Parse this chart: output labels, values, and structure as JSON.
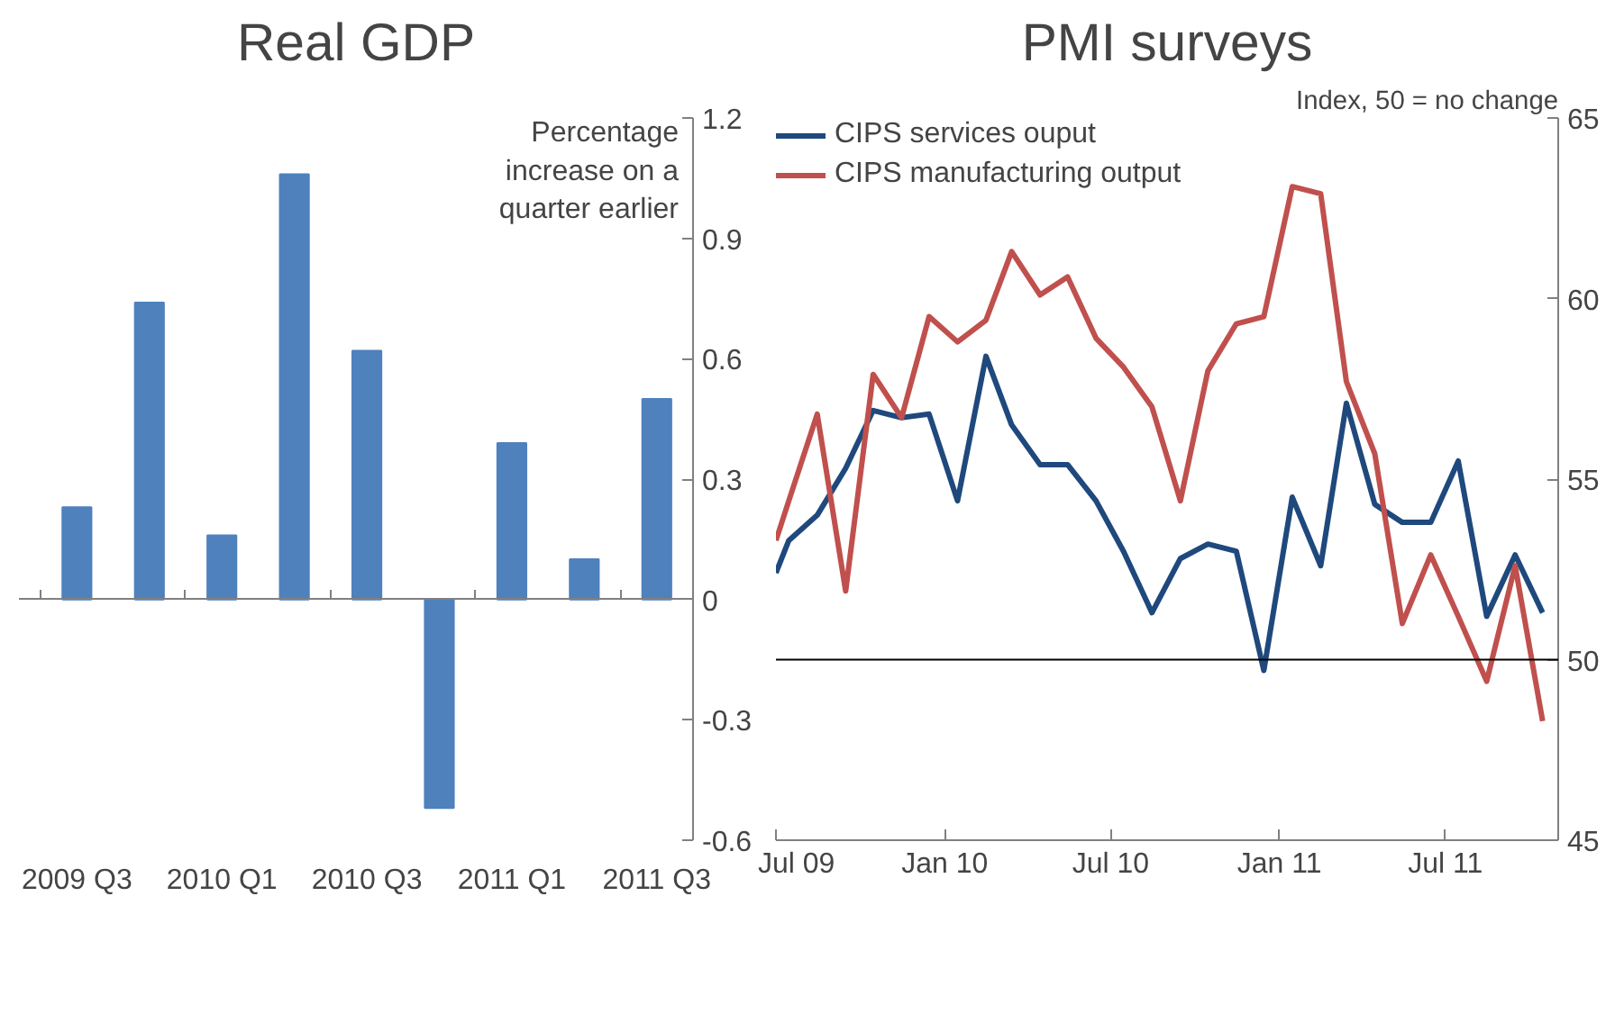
{
  "chart_data": [
    {
      "type": "bar",
      "title": "Real GDP",
      "ylabel": "Percentage increase on a quarter earlier",
      "categories": [
        "2009 Q3",
        null,
        "2010 Q1",
        null,
        "2010 Q3",
        null,
        "2011 Q1",
        null,
        "2011 Q3"
      ],
      "values": [
        0.23,
        0.74,
        0.16,
        1.06,
        0.62,
        -0.52,
        0.39,
        0.1,
        0.5
      ],
      "color": "#4f81bd",
      "ylim": [
        -0.6,
        1.2
      ],
      "yticks": [
        {
          "value": -0.6,
          "label": "-0.6"
        },
        {
          "value": -0.3,
          "label": "-0.3"
        },
        0,
        {
          "value": 0.3,
          "label": "0.3"
        },
        {
          "value": 0.6,
          "label": "0.6"
        },
        {
          "value": 0.9,
          "label": "0.9"
        },
        {
          "value": 1.2,
          "label": "1.2"
        }
      ],
      "legend": false
    },
    {
      "type": "line",
      "title": "PMI surveys",
      "ylabel": "Index, 50 = no change",
      "x": [
        "2009-07-01",
        "2009-07-15",
        "2009-08-15",
        "2009-09-15",
        "2009-10-15",
        "2009-11-15",
        "2009-12-15",
        "2010-01-15",
        "2010-02-15",
        "2010-03-15",
        "2010-04-15",
        "2010-05-15",
        "2010-06-15",
        "2010-07-15",
        "2010-08-15",
        "2010-09-15",
        "2010-10-15",
        "2010-11-15",
        "2010-12-15",
        "2011-01-15",
        "2011-02-15",
        "2011-03-15",
        "2011-04-15",
        "2011-05-15",
        "2011-06-15",
        "2011-07-15",
        "2011-08-15",
        "2011-09-15",
        "2011-10-15"
      ],
      "series": [
        {
          "name": "CIPS services ouput",
          "color": "#1f497d",
          "values": [
            52.4,
            53.3,
            54.0,
            55.3,
            56.9,
            56.7,
            56.8,
            54.4,
            58.4,
            56.5,
            55.4,
            55.4,
            54.4,
            53.0,
            51.3,
            52.8,
            53.2,
            53.0,
            49.7,
            54.5,
            52.6,
            57.1,
            54.3,
            53.8,
            53.8,
            55.5,
            51.2,
            52.9,
            51.3
          ]
        },
        {
          "name": "CIPS manufacturing output",
          "color": "#c0504d",
          "values": [
            53.3,
            54.4,
            56.8,
            51.9,
            57.9,
            56.7,
            59.5,
            58.8,
            59.4,
            61.3,
            60.1,
            60.6,
            58.9,
            58.1,
            57.0,
            54.4,
            58.0,
            59.3,
            59.5,
            63.1,
            62.9,
            57.7,
            55.7,
            51.0,
            52.9,
            51.2,
            49.4,
            52.6,
            48.3
          ]
        }
      ],
      "xlim": [
        "2009-07-01",
        "2011-11-01"
      ],
      "xticks": [
        {
          "value": "2009-07-01",
          "label": "Jul 09"
        },
        {
          "value": "2010-01-01",
          "label": "Jan 10"
        },
        {
          "value": "2010-07-01",
          "label": "Jul 10"
        },
        {
          "value": "2011-01-01",
          "label": "Jan 11"
        },
        {
          "value": "2011-07-01",
          "label": "Jul 11"
        }
      ],
      "ylim": [
        45,
        65
      ],
      "yticks": [
        45,
        50,
        55,
        60,
        65
      ],
      "ref_lines": [
        {
          "axis": "y",
          "value": 50,
          "color": "#000000"
        }
      ],
      "grid": false,
      "legend": "top left",
      "marker": "none",
      "line_style": "solid"
    }
  ]
}
